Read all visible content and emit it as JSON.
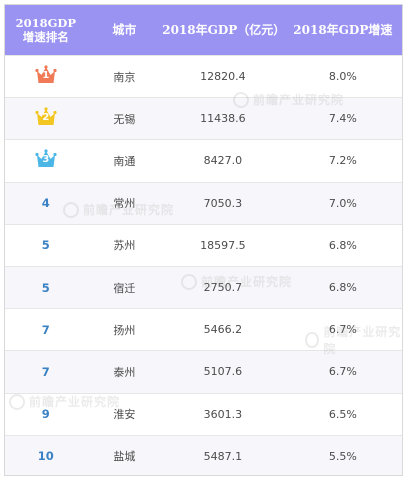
{
  "header": {
    "rank_line1": "2018GDP",
    "rank_line2": "增速排名",
    "city": "城市",
    "gdp": "2018年GDP（亿元）",
    "growth": "2018年GDP增速"
  },
  "watermark_text": "前瞻产业研究院",
  "colors": {
    "header_bg": "#9a93f2",
    "rank_text": "#3a82c4",
    "crown_1": "#f07a56",
    "crown_2": "#f3c621",
    "crown_3": "#4cb6e6"
  },
  "rows": [
    {
      "rank": "1",
      "crown": "crown_1",
      "city": "南京",
      "gdp": "12820.4",
      "growth": "8.0%"
    },
    {
      "rank": "2",
      "crown": "crown_2",
      "city": "无锡",
      "gdp": "11438.6",
      "growth": "7.4%"
    },
    {
      "rank": "3",
      "crown": "crown_3",
      "city": "南通",
      "gdp": "8427.0",
      "growth": "7.2%"
    },
    {
      "rank": "4",
      "crown": "",
      "city": "常州",
      "gdp": "7050.3",
      "growth": "7.0%"
    },
    {
      "rank": "5",
      "crown": "",
      "city": "苏州",
      "gdp": "18597.5",
      "growth": "6.8%"
    },
    {
      "rank": "5",
      "crown": "",
      "city": "宿迁",
      "gdp": "2750.7",
      "growth": "6.8%"
    },
    {
      "rank": "7",
      "crown": "",
      "city": "扬州",
      "gdp": "5466.2",
      "growth": "6.7%"
    },
    {
      "rank": "7",
      "crown": "",
      "city": "泰州",
      "gdp": "5107.6",
      "growth": "6.7%"
    },
    {
      "rank": "9",
      "crown": "",
      "city": "淮安",
      "gdp": "3601.3",
      "growth": "6.5%"
    },
    {
      "rank": "10",
      "crown": "",
      "city": "盐城",
      "gdp": "5487.1",
      "growth": "5.5%"
    }
  ]
}
